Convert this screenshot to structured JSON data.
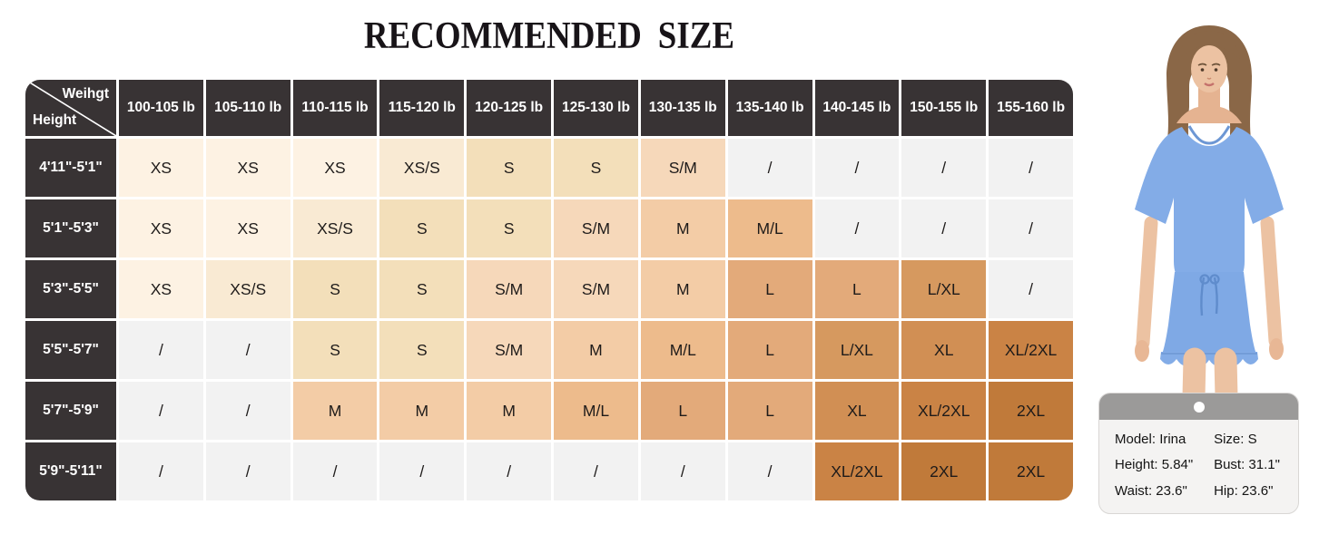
{
  "title": "RECOMMENDED SIZE",
  "chart_data": {
    "type": "table",
    "title": "RECOMMENDED SIZE",
    "corner": {
      "top_label": "Weihgt",
      "bottom_label": "Height"
    },
    "weight_columns": [
      "100-105 lb",
      "105-110 lb",
      "110-115 lb",
      "115-120 lb",
      "120-125 lb",
      "125-130 lb",
      "130-135 lb",
      "135-140 lb",
      "140-145 lb",
      "150-155 lb",
      "155-160 lb"
    ],
    "height_rows": [
      "4'11\"-5'1\"",
      "5'1\"-5'3\"",
      "5'3\"-5'5\"",
      "5'5\"-5'7\"",
      "5'7\"-5'9\"",
      "5'9\"-5'11\""
    ],
    "sizes": [
      [
        "XS",
        "XS",
        "XS",
        "XS/S",
        "S",
        "S",
        "S/M",
        "/",
        "/",
        "/",
        "/"
      ],
      [
        "XS",
        "XS",
        "XS/S",
        "S",
        "S",
        "S/M",
        "M",
        "M/L",
        "/",
        "/",
        "/"
      ],
      [
        "XS",
        "XS/S",
        "S",
        "S",
        "S/M",
        "S/M",
        "M",
        "L",
        "L",
        "L/XL",
        "/"
      ],
      [
        "/",
        "/",
        "S",
        "S",
        "S/M",
        "M",
        "M/L",
        "L",
        "L/XL",
        "XL",
        "XL/2XL"
      ],
      [
        "/",
        "/",
        "M",
        "M",
        "M",
        "M/L",
        "L",
        "L",
        "XL",
        "XL/2XL",
        "2XL"
      ],
      [
        "/",
        "/",
        "/",
        "/",
        "/",
        "/",
        "/",
        "/",
        "XL/2XL",
        "2XL",
        "2XL"
      ]
    ],
    "empty_marker": "/",
    "size_colors": {
      "XS": "#fdf2e3",
      "XS/S": "#f9ead3",
      "S": "#f3dfba",
      "S/M": "#f6d8ba",
      "M": "#f3cca6",
      "M/L": "#edbb8c",
      "L": "#e3aa7a",
      "L/XL": "#d6995f",
      "XL": "#d18f54",
      "XL/2XL": "#ca8345",
      "2XL": "#c07a3a",
      "/": "#f2f2f2"
    },
    "header_bg": "#383334",
    "legend_position": "none",
    "grid": "white 3px gaps between cells, dark header row and header column, rounded outer corners"
  },
  "model_card": {
    "rows": [
      {
        "left": "Model: Irina",
        "right": "Size: S"
      },
      {
        "left": "Height: 5.84\"",
        "right": "Bust: 31.1\""
      },
      {
        "left": "Waist: 23.6\"",
        "right": "Hip: 23.6\""
      }
    ]
  },
  "model_photo": {
    "garment": "blue short-sleeve pajama top and ruffle-hem shorts",
    "garment_color": "#83ace7",
    "skin_color": "#ecc2a2",
    "hair_color": "#8a6747"
  }
}
